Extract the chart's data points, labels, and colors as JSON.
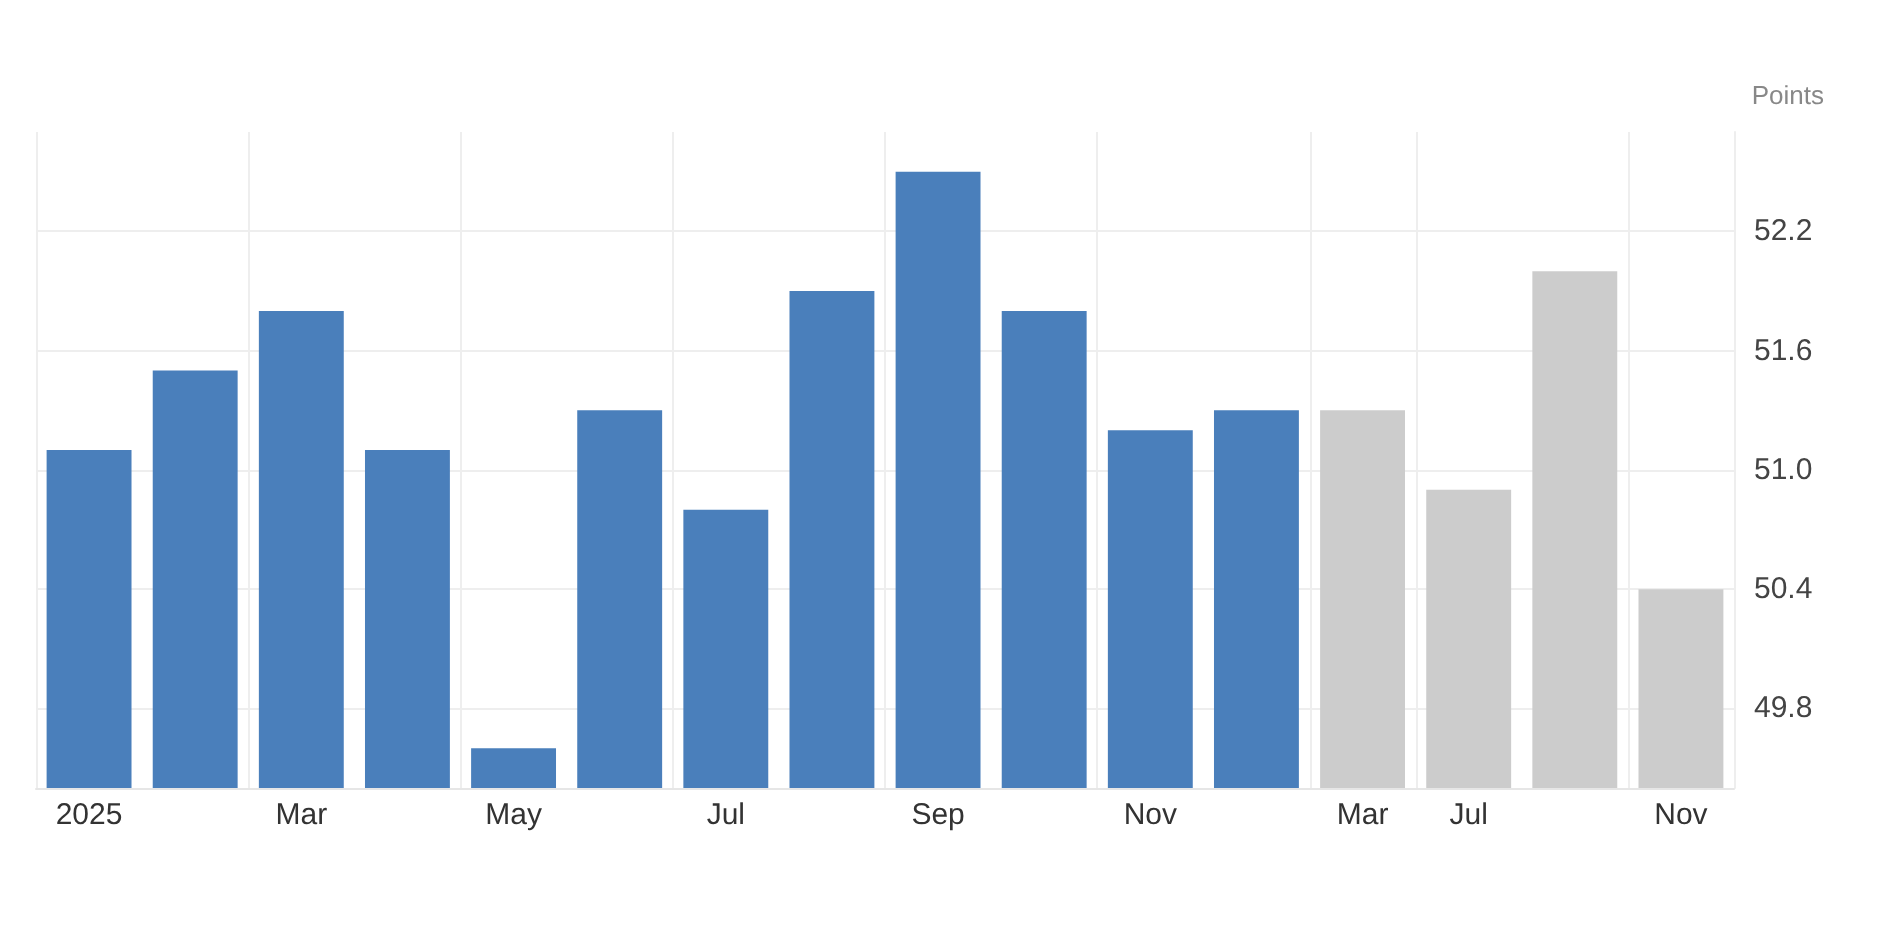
{
  "chart_data": {
    "type": "bar",
    "ylabel": "Points",
    "categories": [
      "2025",
      null,
      "Mar",
      null,
      "May",
      null,
      "Jul",
      null,
      "Sep",
      null,
      "Nov",
      null,
      "Mar",
      "Jul",
      null,
      "Nov"
    ],
    "values": [
      51.1,
      51.5,
      51.8,
      51.1,
      49.6,
      51.3,
      50.8,
      51.9,
      52.5,
      51.8,
      51.2,
      51.3,
      51.3,
      50.9,
      52.0,
      50.4
    ],
    "colors": [
      "#4a7fbb",
      "#4a7fbb",
      "#4a7fbb",
      "#4a7fbb",
      "#4a7fbb",
      "#4a7fbb",
      "#4a7fbb",
      "#4a7fbb",
      "#4a7fbb",
      "#4a7fbb",
      "#4a7fbb",
      "#4a7fbb",
      "#cccccc",
      "#cccccc",
      "#cccccc",
      "#cccccc"
    ],
    "ylim": [
      49.4,
      52.7
    ],
    "yticks": [
      49.8,
      50.4,
      {
        "value": 51,
        "label": "51.0"
      },
      51.6,
      52.2
    ],
    "grid": true
  }
}
